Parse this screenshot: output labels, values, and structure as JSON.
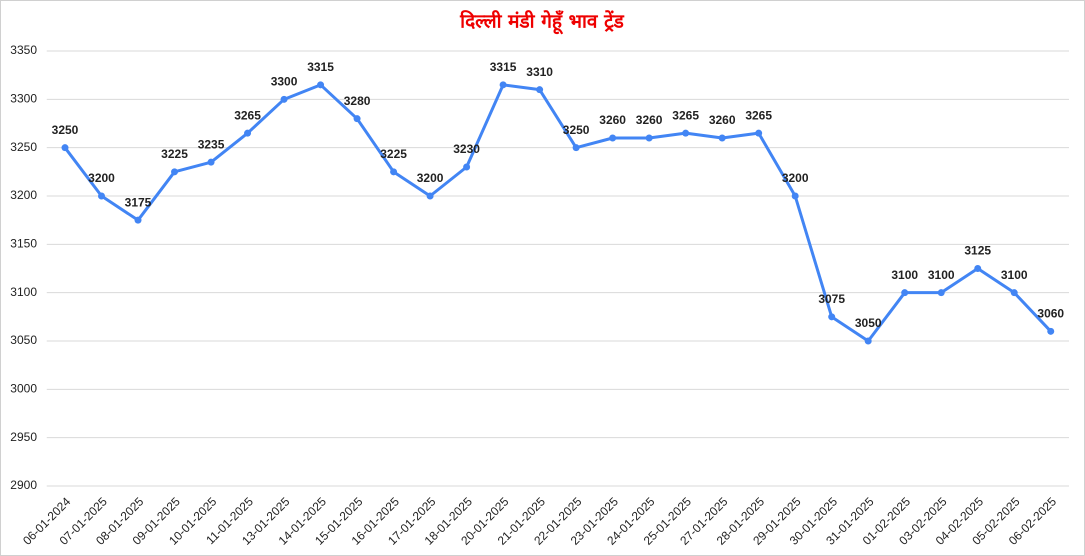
{
  "chart_data": {
    "type": "line",
    "title": "दिल्ली मंडी गेहूँ भाव ट्रेंड",
    "categories": [
      "06-01-2024",
      "07-01-2025",
      "08-01-2025",
      "09-01-2025",
      "10-01-2025",
      "11-01-2025",
      "13-01-2025",
      "14-01-2025",
      "15-01-2025",
      "16-01-2025",
      "17-01-2025",
      "18-01-2025",
      "20-01-2025",
      "21-01-2025",
      "22-01-2025",
      "23-01-2025",
      "24-01-2025",
      "25-01-2025",
      "27-01-2025",
      "28-01-2025",
      "29-01-2025",
      "30-01-2025",
      "31-01-2025",
      "01-02-2025",
      "03-02-2025",
      "04-02-2025",
      "05-02-2025",
      "06-02-2025"
    ],
    "values": [
      3250,
      3200,
      3175,
      3225,
      3235,
      3265,
      3300,
      3315,
      3280,
      3225,
      3200,
      3230,
      3315,
      3310,
      3250,
      3260,
      3260,
      3265,
      3260,
      3265,
      3200,
      3075,
      3050,
      3100,
      3100,
      3125,
      3100,
      3060
    ],
    "color": "#4285f4",
    "ylim": [
      2900,
      3350
    ],
    "yticks": [
      2900,
      2950,
      3000,
      3050,
      3100,
      3150,
      3200,
      3250,
      3300,
      3350
    ],
    "grid": true
  }
}
